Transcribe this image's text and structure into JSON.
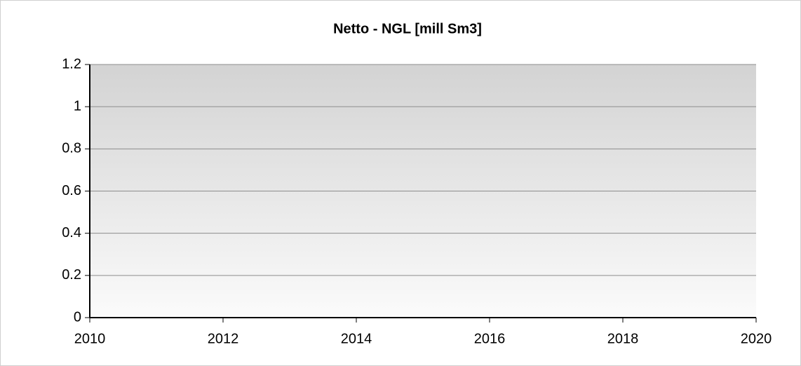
{
  "chart_data": {
    "type": "line",
    "title": "Netto - NGL [mill Sm3]",
    "series": [],
    "xlim": [
      2010,
      2020
    ],
    "xticks": [
      2010,
      2012,
      2014,
      2016,
      2018,
      2020
    ],
    "ylim": [
      0,
      1.2
    ],
    "yticks": [
      0,
      0.2,
      0.4,
      0.6,
      0.8,
      1,
      1.2
    ],
    "grid": true
  }
}
